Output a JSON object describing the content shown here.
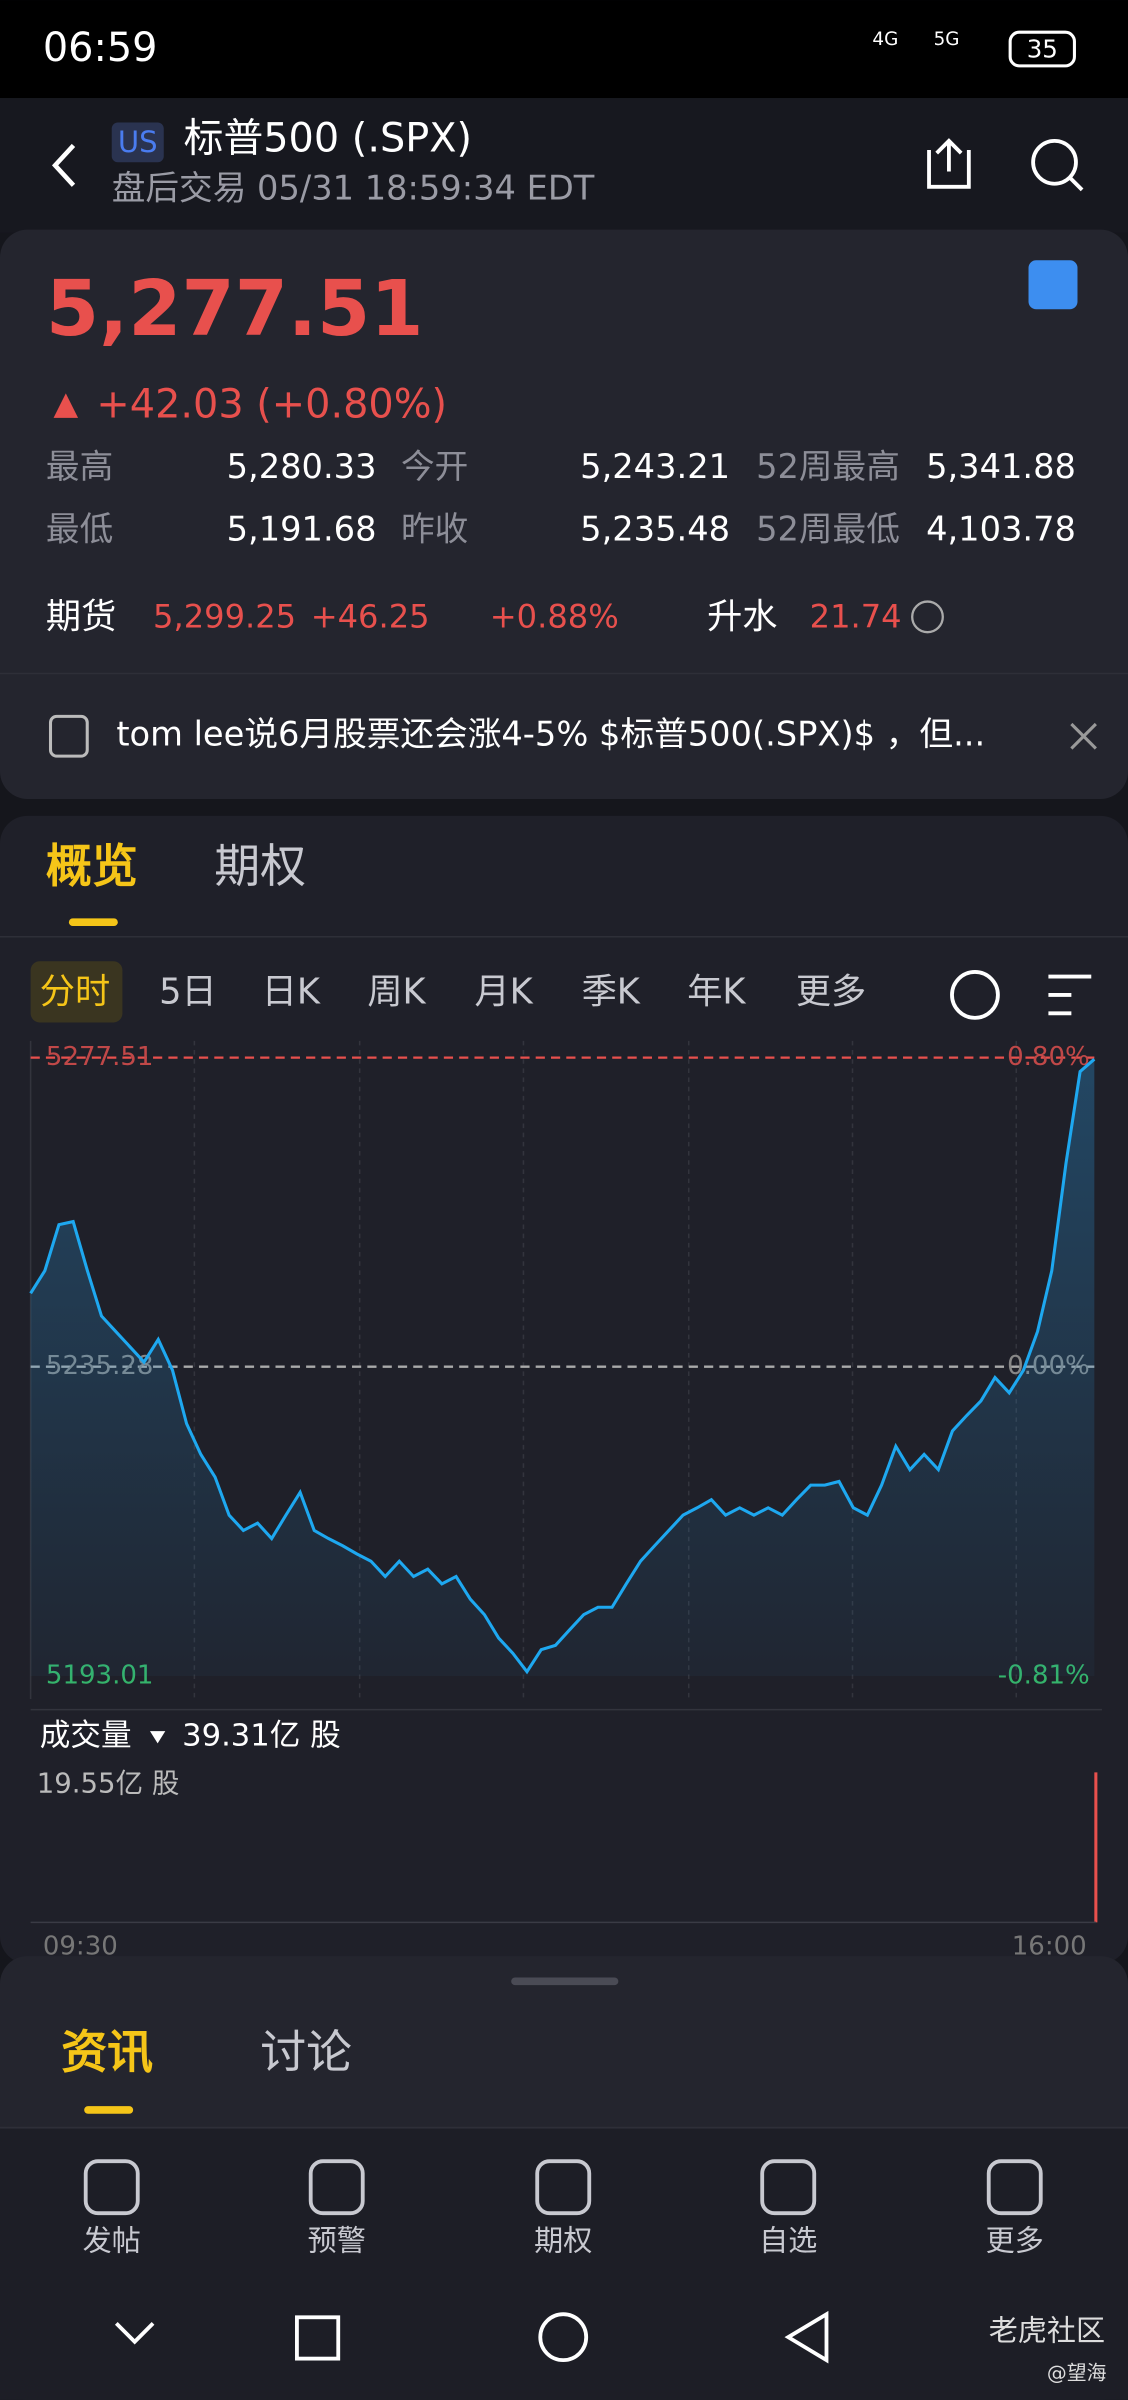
{
  "status": {
    "time": "06:59",
    "net1": "4G",
    "net2": "5G",
    "battery": "35"
  },
  "header": {
    "badge": "US",
    "title": "标普500 (.SPX)",
    "subtitle": "盘后交易 05/31 18:59:34 EDT"
  },
  "quote": {
    "price": "5,277.51",
    "change": "+42.03 (+0.80%)",
    "stats": [
      [
        "最高",
        "5,280.33",
        "今开",
        "5,243.21",
        "52周最高",
        "5,341.88"
      ],
      [
        "最低",
        "5,191.68",
        "昨收",
        "5,235.48",
        "52周最低",
        "4,103.78"
      ]
    ],
    "futures": {
      "label": "期货",
      "price": "5,299.25",
      "change": "+46.25",
      "pct": "+0.88%",
      "premium_label": "升水",
      "premium": "21.74"
    }
  },
  "news": "tom lee说6月股票还会涨4-5% $标普500(.SPX)$ ，但...",
  "tabs": [
    "概览",
    "期权"
  ],
  "periods": [
    "分时",
    "5日",
    "日K",
    "周K",
    "月K",
    "季K",
    "年K",
    "更多"
  ],
  "chart": {
    "type": "line",
    "ylim": [
      5193.01,
      5277.51
    ],
    "yticks": [
      5193.01,
      5235.28,
      5277.51
    ],
    "right_labels": [
      "-0.81%",
      "0.00%",
      "0.80%"
    ],
    "values": [
      5245.3,
      5248.4,
      5254.7,
      5255.1,
      5248.4,
      5242.2,
      5240.1,
      5238.0,
      5235.9,
      5239.0,
      5234.8,
      5227.5,
      5223.3,
      5220.2,
      5215.0,
      5212.9,
      5213.9,
      5211.8,
      5215.0,
      5218.1,
      5212.9,
      5211.8,
      5210.8,
      5209.7,
      5208.7,
      5206.6,
      5208.7,
      5206.6,
      5207.6,
      5205.6,
      5206.6,
      5203.5,
      5201.4,
      5198.2,
      5196.1,
      5193.6,
      5196.6,
      5197.2,
      5199.3,
      5201.4,
      5202.4,
      5202.4,
      5205.6,
      5208.7,
      5210.8,
      5212.9,
      5215.0,
      5216.0,
      5217.1,
      5215.0,
      5216.0,
      5215.0,
      5216.0,
      5215.0,
      5217.1,
      5219.1,
      5219.1,
      5219.6,
      5216.0,
      5215.0,
      5219.1,
      5224.4,
      5221.2,
      5223.3,
      5221.2,
      5226.5,
      5228.6,
      5230.6,
      5233.8,
      5231.7,
      5234.8,
      5240.1,
      5248.4,
      5263.1,
      5275.6,
      5277.3
    ],
    "volume_label": "成交量",
    "volume": "39.31亿 股",
    "volume_max": "19.55亿 股",
    "x_start": "09:30",
    "x_end": "16:00"
  },
  "bottom_tabs": [
    "资讯",
    "讨论"
  ],
  "nav": [
    "发帖",
    "预警",
    "期权",
    "自选",
    "更多"
  ],
  "watermark": {
    "brand": "老虎社区",
    "user": "@望海"
  }
}
